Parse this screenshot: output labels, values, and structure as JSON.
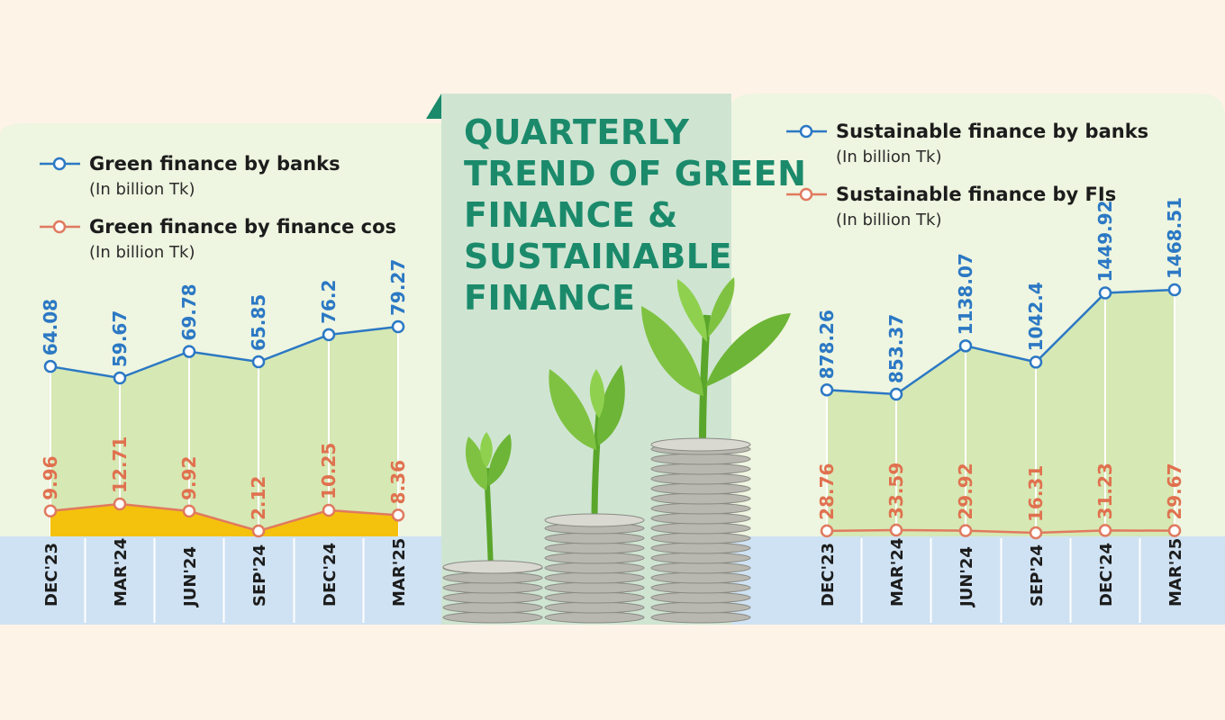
{
  "title_lines": [
    "QUARTERLY",
    "TREND OF GREEN",
    "FINANCE &",
    "SUSTAINABLE",
    "FINANCE"
  ],
  "colors": {
    "blue_line": "#2b78c4",
    "orange_line": "#e07a5f",
    "green_fill": "#d6e8b4",
    "yellow_fill": "#f4c20d",
    "axis_band": "#cfe2f3",
    "title": "#1b8a6b"
  },
  "chart_data": [
    {
      "type": "line",
      "categories": [
        "DEC'23",
        "MAR'24",
        "JUN'24",
        "SEP'24",
        "DEC'24",
        "MAR'25"
      ],
      "series": [
        {
          "name": "Green finance by banks",
          "unit": "(In billion Tk)",
          "values": [
            64.08,
            59.67,
            69.78,
            65.85,
            76.2,
            79.27
          ],
          "labels": [
            "64.08",
            "59.67",
            "69.78",
            "65.85",
            "76.2",
            "79.27"
          ]
        },
        {
          "name": "Green finance by finance cos",
          "unit": "(In billion Tk)",
          "values": [
            9.96,
            12.71,
            9.92,
            2.12,
            10.25,
            8.36
          ],
          "labels": [
            "9.96",
            "12.71",
            "9.92",
            "2.12",
            "10.25",
            "8.36"
          ]
        }
      ],
      "grid": false,
      "legend_position": "top-left"
    },
    {
      "type": "line",
      "categories": [
        "DEC'23",
        "MAR'24",
        "JUN'24",
        "SEP'24",
        "DEC'24",
        "MAR'25"
      ],
      "series": [
        {
          "name": "Sustainable finance by banks",
          "unit": "(In billion Tk)",
          "values": [
            878.26,
            853.37,
            1138.07,
            1042.4,
            1449.92,
            1468.51
          ],
          "labels": [
            "878.26",
            "853.37",
            "1138.07",
            "1042.4",
            "1449.92",
            "1468.51"
          ]
        },
        {
          "name": "Sustainable finance by FIs",
          "unit": "(In billion Tk)",
          "values": [
            28.76,
            33.59,
            29.92,
            16.31,
            31.23,
            29.67
          ],
          "labels": [
            "28.76",
            "33.59",
            "29.92",
            "16.31",
            "31.23",
            "29.67"
          ]
        }
      ],
      "grid": false,
      "legend_position": "top-left"
    }
  ]
}
